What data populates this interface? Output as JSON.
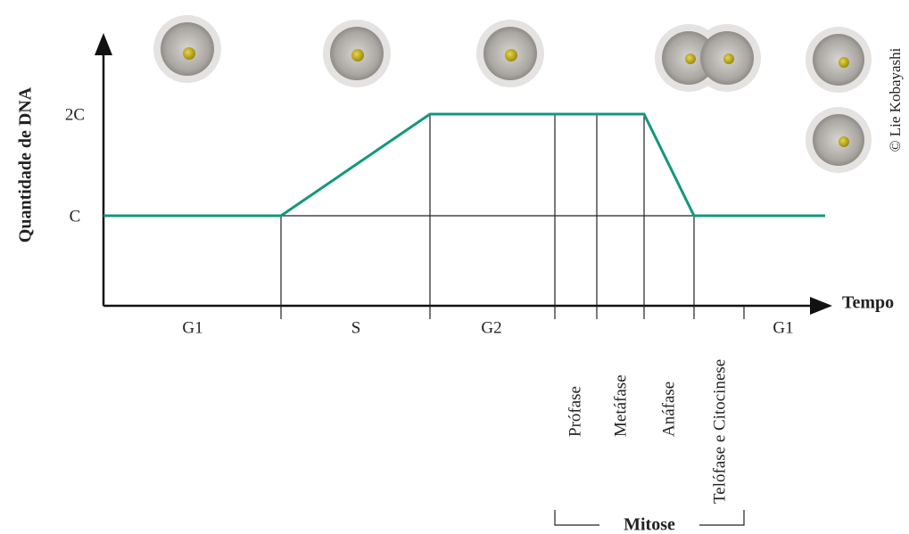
{
  "axes": {
    "y_label": "Quantidade de DNA",
    "x_label": "Tempo",
    "y_levels": [
      "2C",
      "C"
    ]
  },
  "phases": [
    "G1",
    "S",
    "G2",
    "G1"
  ],
  "mitosis_stages": [
    "Prófase",
    "Metáfase",
    "Anáfase",
    "Telófase e Citocinese"
  ],
  "mitosis_label": "Mitose",
  "credit": "© Lie Kobayashi"
}
